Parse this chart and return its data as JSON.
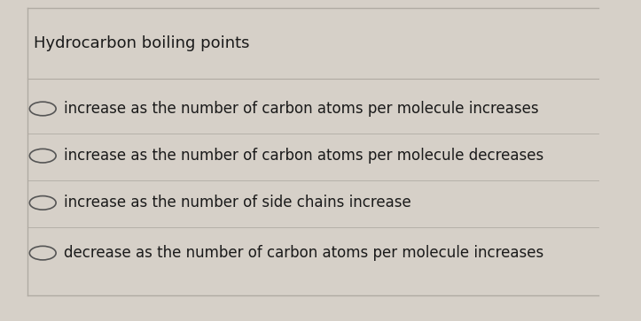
{
  "title": "Hydrocarbon boiling points",
  "options": [
    "increase as the number of carbon atoms per molecule increases",
    "increase as the number of carbon atoms per molecule decreases",
    "increase as the number of side chains increase",
    "decrease as the number of carbon atoms per molecule increases"
  ],
  "background_color": "#d6d0c8",
  "card_color": "#ccc8bf",
  "title_color": "#1a1a1a",
  "option_color": "#1a1a1a",
  "title_fontsize": 13,
  "option_fontsize": 12,
  "circle_color": "#555555",
  "line_color": "#b0aba3"
}
